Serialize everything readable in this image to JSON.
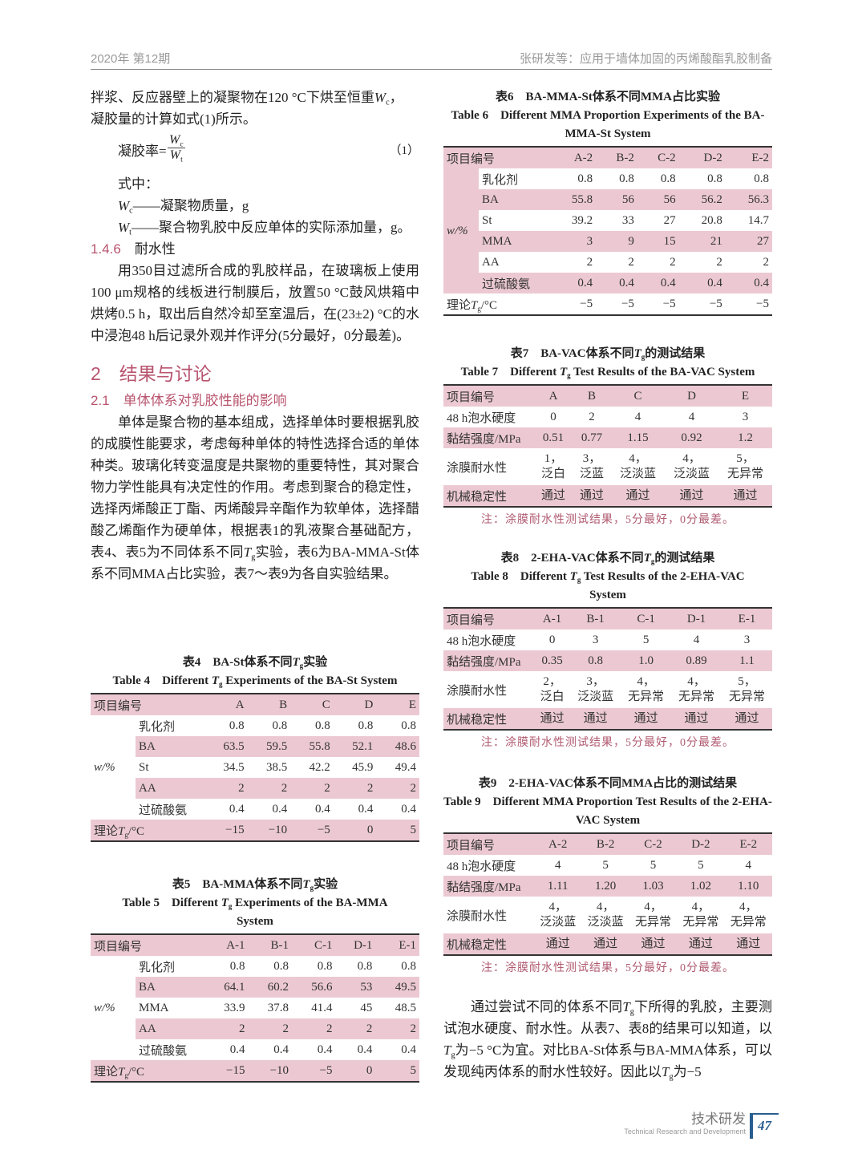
{
  "header": {
    "issue": "2020年 第12期",
    "running_title": "张研发等：应用于墙体加固的丙烯酸酯乳胶制备"
  },
  "left": {
    "intro_lines": [
      "拌浆、反应器壁上的凝聚物在120 °C下烘至恒重Wc，",
      "凝胶量的计算如式(1)所示。"
    ],
    "formula": {
      "lhs": "凝胶率=",
      "numerator": "Wc",
      "denominator": "Wt",
      "number": "（1）"
    },
    "where": "式中：",
    "defs": [
      "Wc——凝聚物质量，g",
      "Wt——聚合物乳胶中反应单体的实际添加量，g。"
    ],
    "sec_146": {
      "num": "1.4.6",
      "title": "耐水性"
    },
    "para_146": "用350目过滤所合成的乳胶样品，在玻璃板上使用100 μm规格的线板进行制膜后，放置50 °C鼓风烘箱中烘烤0.5 h，取出后自然冷却至室温后，在(23±2) °C的水中浸泡48 h后记录外观并作评分(5分最好，0分最差)。",
    "sec_2": {
      "num": "2",
      "title": "结果与讨论"
    },
    "sec_21": {
      "num": "2.1",
      "title": "单体体系对乳胶性能的影响"
    },
    "para_21": "单体是聚合物的基本组成，选择单体时要根据乳胶的成膜性能要求，考虑每种单体的特性选择合适的单体种类。玻璃化转变温度是共聚物的重要特性，其对聚合物力学性能具有决定性的作用。考虑到聚合的稳定性，选择丙烯酸正丁酯、丙烯酸异辛酯作为软单体，选择醋酸乙烯酯作为硬单体，根据表1的乳液聚合基础配方，表4、表5为不同体系不同Tg实验，表6为BA-MMA-St体系不同MMA占比实验，表7～表9为各自实验结果。"
  },
  "tables": {
    "t4": {
      "cap_cn": "表4　BA-St体系不同Tg实验",
      "cap_en": "Table 4　Different Tg Experiments of the BA-St System",
      "head": "项目编号",
      "cols": [
        "A",
        "B",
        "C",
        "D",
        "E"
      ],
      "group": "w/%",
      "rows": [
        {
          "label": "乳化剂",
          "values": [
            "0.8",
            "0.8",
            "0.8",
            "0.8",
            "0.8"
          ]
        },
        {
          "label": "BA",
          "values": [
            "63.5",
            "59.5",
            "55.8",
            "52.1",
            "48.6"
          ]
        },
        {
          "label": "St",
          "values": [
            "34.5",
            "38.5",
            "42.2",
            "45.9",
            "49.4"
          ]
        },
        {
          "label": "AA",
          "values": [
            "2",
            "2",
            "2",
            "2",
            "2"
          ]
        },
        {
          "label": "过硫酸氨",
          "values": [
            "0.4",
            "0.4",
            "0.4",
            "0.4",
            "0.4"
          ]
        }
      ],
      "foot": {
        "label": "理论Tg/°C",
        "values": [
          "−15",
          "−10",
          "−5",
          "0",
          "5"
        ]
      }
    },
    "t5": {
      "cap_cn": "表5　BA-MMA体系不同Tg实验",
      "cap_en": "Table 5　Different Tg Experiments of the BA-MMA System",
      "head": "项目编号",
      "cols": [
        "A-1",
        "B-1",
        "C-1",
        "D-1",
        "E-1"
      ],
      "group": "w/%",
      "rows": [
        {
          "label": "乳化剂",
          "values": [
            "0.8",
            "0.8",
            "0.8",
            "0.8",
            "0.8"
          ]
        },
        {
          "label": "BA",
          "values": [
            "64.1",
            "60.2",
            "56.6",
            "53",
            "49.5"
          ]
        },
        {
          "label": "MMA",
          "values": [
            "33.9",
            "37.8",
            "41.4",
            "45",
            "48.5"
          ]
        },
        {
          "label": "AA",
          "values": [
            "2",
            "2",
            "2",
            "2",
            "2"
          ]
        },
        {
          "label": "过硫酸氨",
          "values": [
            "0.4",
            "0.4",
            "0.4",
            "0.4",
            "0.4"
          ]
        }
      ],
      "foot": {
        "label": "理论Tg/°C",
        "values": [
          "−15",
          "−10",
          "−5",
          "0",
          "5"
        ]
      }
    },
    "t6": {
      "cap_cn": "表6　BA-MMA-St体系不同MMA占比实验",
      "cap_en": "Table 6　Different MMA Proportion Experiments of the BA-MMA-St System",
      "head": "项目编号",
      "cols": [
        "A-2",
        "B-2",
        "C-2",
        "D-2",
        "E-2"
      ],
      "group": "w/%",
      "rows": [
        {
          "label": "乳化剂",
          "values": [
            "0.8",
            "0.8",
            "0.8",
            "0.8",
            "0.8"
          ]
        },
        {
          "label": "BA",
          "values": [
            "55.8",
            "56",
            "56",
            "56.2",
            "56.3"
          ]
        },
        {
          "label": "St",
          "values": [
            "39.2",
            "33",
            "27",
            "20.8",
            "14.7"
          ]
        },
        {
          "label": "MMA",
          "values": [
            "3",
            "9",
            "15",
            "21",
            "27"
          ]
        },
        {
          "label": "AA",
          "values": [
            "2",
            "2",
            "2",
            "2",
            "2"
          ]
        },
        {
          "label": "过硫酸氨",
          "values": [
            "0.4",
            "0.4",
            "0.4",
            "0.4",
            "0.4"
          ]
        }
      ],
      "foot": {
        "label": "理论Tg/°C",
        "values": [
          "−5",
          "−5",
          "−5",
          "−5",
          "−5"
        ]
      }
    },
    "t7": {
      "cap_cn": "表7　BA-VAC体系不同Tg的测试结果",
      "cap_en": "Table 7　Different Tg Test Results of the BA-VAC System",
      "head": "项目编号",
      "cols": [
        "A",
        "B",
        "C",
        "D",
        "E"
      ],
      "rows": [
        {
          "label": "48 h泡水硬度",
          "values": [
            "0",
            "2",
            "4",
            "4",
            "3"
          ]
        },
        {
          "label": "黏结强度/MPa",
          "values": [
            "0.51",
            "0.77",
            "1.15",
            "0.92",
            "1.2"
          ]
        },
        {
          "label": "涂膜耐水性",
          "values": [
            "1，\n泛白",
            "3，\n泛蓝",
            "4，\n泛淡蓝",
            "4，\n泛淡蓝",
            "5，\n无异常"
          ]
        },
        {
          "label": "机械稳定性",
          "values": [
            "通过",
            "通过",
            "通过",
            "通过",
            "通过"
          ]
        }
      ],
      "note": "注：涂膜耐水性测试结果，5分最好，0分最差。"
    },
    "t8": {
      "cap_cn": "表8　2-EHA-VAC体系不同Tg的测试结果",
      "cap_en": "Table 8　Different Tg Test Results of the 2-EHA-VAC System",
      "head": "项目编号",
      "cols": [
        "A-1",
        "B-1",
        "C-1",
        "D-1",
        "E-1"
      ],
      "rows": [
        {
          "label": "48 h泡水硬度",
          "values": [
            "0",
            "3",
            "5",
            "4",
            "3"
          ]
        },
        {
          "label": "黏结强度/MPa",
          "values": [
            "0.35",
            "0.8",
            "1.0",
            "0.89",
            "1.1"
          ]
        },
        {
          "label": "涂膜耐水性",
          "values": [
            "2，\n泛白",
            "3，\n泛淡蓝",
            "4，\n无异常",
            "4，\n无异常",
            "5，\n无异常"
          ]
        },
        {
          "label": "机械稳定性",
          "values": [
            "通过",
            "通过",
            "通过",
            "通过",
            "通过"
          ]
        }
      ],
      "note": "注：涂膜耐水性测试结果，5分最好，0分最差。"
    },
    "t9": {
      "cap_cn": "表9　2-EHA-VAC体系不同MMA占比的测试结果",
      "cap_en": "Table 9　Different MMA Proportion Test Results of the 2-EHA-VAC System",
      "head": "项目编号",
      "cols": [
        "A-2",
        "B-2",
        "C-2",
        "D-2",
        "E-2"
      ],
      "rows": [
        {
          "label": "48 h泡水硬度",
          "values": [
            "4",
            "5",
            "5",
            "5",
            "4"
          ]
        },
        {
          "label": "黏结强度/MPa",
          "values": [
            "1.11",
            "1.20",
            "1.03",
            "1.02",
            "1.10"
          ]
        },
        {
          "label": "涂膜耐水性",
          "values": [
            "4，\n泛淡蓝",
            "4，\n泛淡蓝",
            "4，\n无异常",
            "4，\n无异常",
            "4，\n无异常"
          ]
        },
        {
          "label": "机械稳定性",
          "values": [
            "通过",
            "通过",
            "通过",
            "通过",
            "通过"
          ]
        }
      ],
      "note": "注：涂膜耐水性测试结果，5分最好，0分最差。"
    }
  },
  "right": {
    "para_end": "通过尝试不同的体系不同Tg下所得的乳胶，主要测试泡水硬度、耐水性。从表7、表8的结果可以知道，以Tg为−5 °C为宜。对比BA-St体系与BA-MMA体系，可以发现纯丙体系的耐水性较好。因此以Tg为−5"
  },
  "footer": {
    "section_cn": "技术研发",
    "section_en": "Technical Research and Development",
    "page": "47"
  },
  "colors": {
    "accent_pink": "#b8546e",
    "table_shade": "#ecc9d2",
    "page_blue": "#2a5d8f"
  }
}
